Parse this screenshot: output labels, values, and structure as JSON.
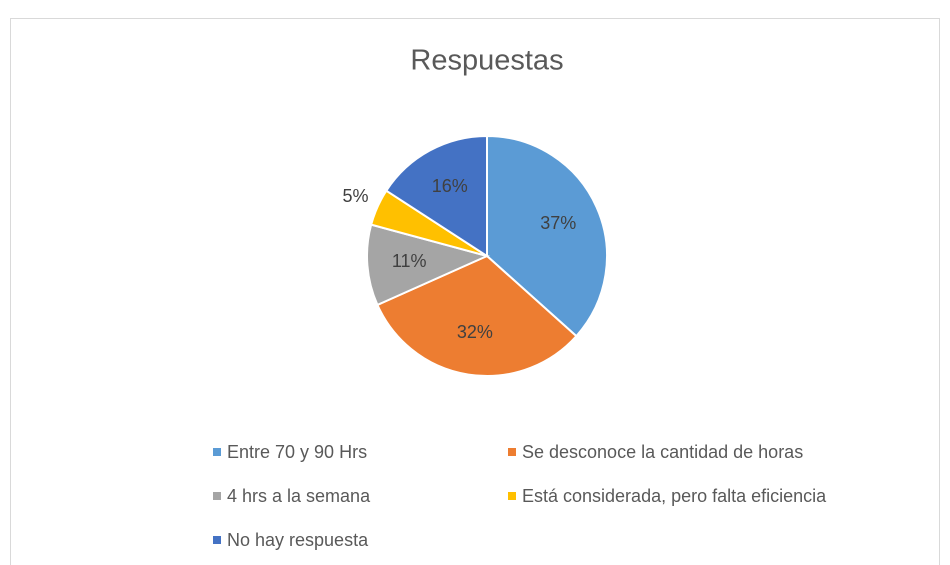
{
  "chart_data": {
    "type": "pie",
    "title": "Respuestas",
    "categories": [
      "Entre 70 y 90 Hrs",
      "Se desconoce la cantidad de horas",
      "4 hrs a la semana",
      "Está considerada, pero falta eficiencia",
      "No hay respuesta"
    ],
    "values": [
      37,
      32,
      11,
      5,
      16
    ],
    "value_labels": [
      "37%",
      "32%",
      "11%",
      "5%",
      "16%"
    ],
    "colors": [
      "#5b9bd5",
      "#ed7d31",
      "#a5a5a5",
      "#ffc000",
      "#4472c4"
    ],
    "legend": "bottom"
  }
}
